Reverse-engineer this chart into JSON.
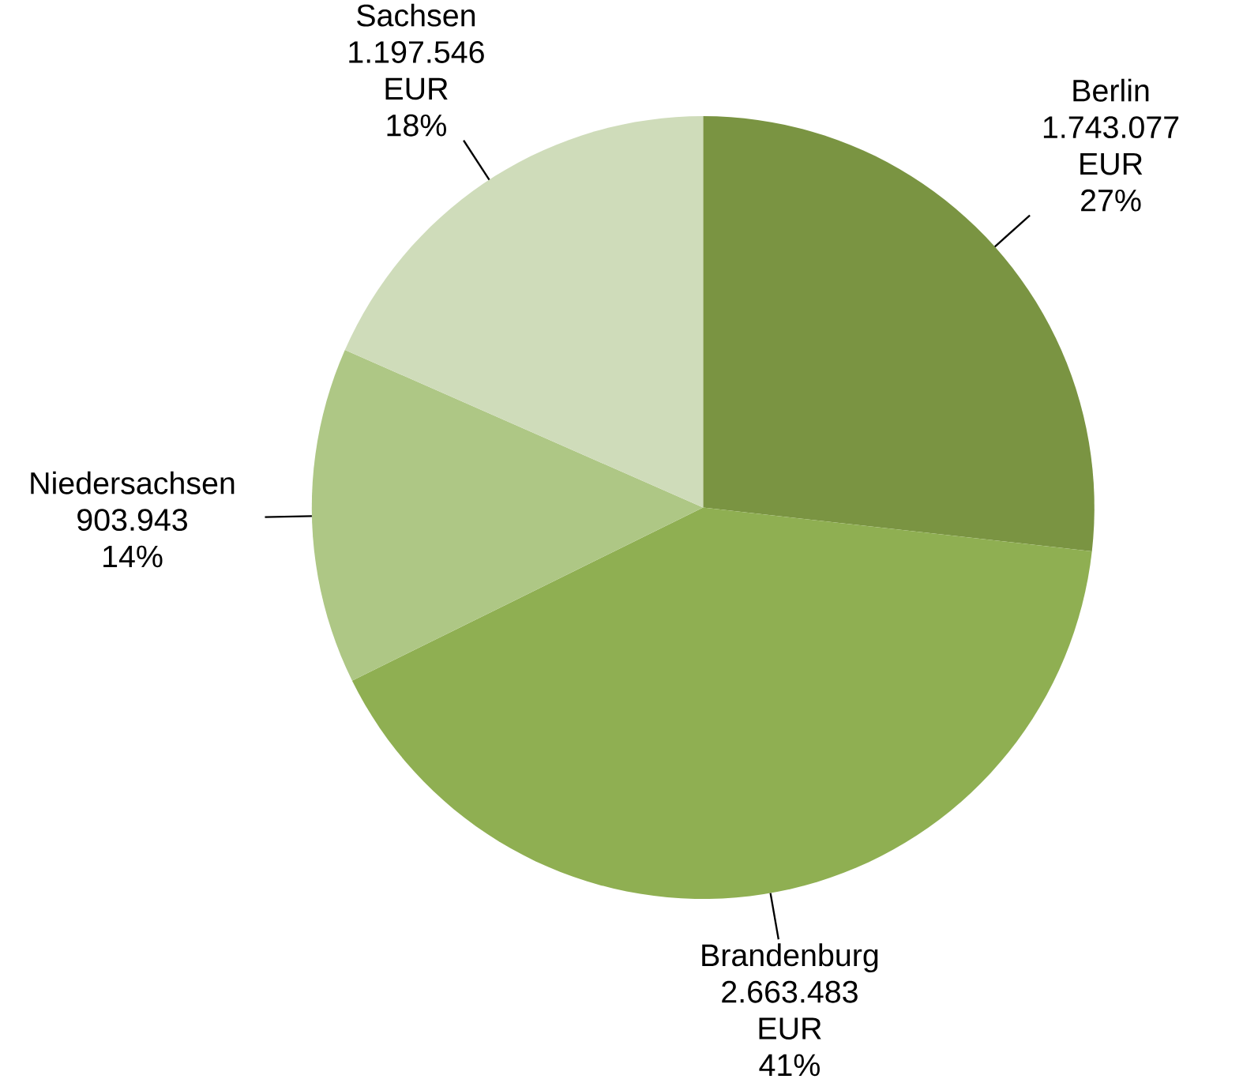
{
  "chart_data": {
    "type": "pie",
    "categories": [
      "Berlin",
      "Brandenburg",
      "Niedersachsen",
      "Sachsen"
    ],
    "values": [
      1743077,
      2663483,
      903943,
      1197546
    ],
    "colors": [
      "#7a9442",
      "#8faf52",
      "#aec785",
      "#cfdcba"
    ],
    "value_labels": [
      "1.743.077 EUR 27%",
      "2.663.483 EUR 41%",
      "903.943 14%",
      "1.197.546 EUR 18%"
    ]
  }
}
